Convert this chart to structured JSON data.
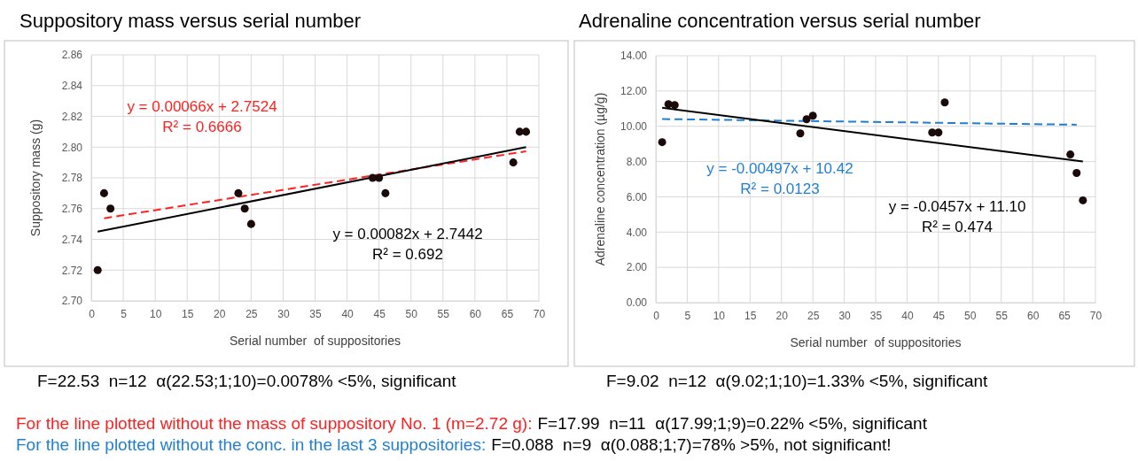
{
  "chart_data": [
    {
      "type": "scatter",
      "title": "Suppository mass versus serial number",
      "xlabel": "Serial number  of suppositories",
      "ylabel": "Suppository mass (g)",
      "xlim": [
        0,
        70
      ],
      "xticks": [
        0,
        5,
        10,
        15,
        20,
        25,
        30,
        35,
        40,
        45,
        50,
        55,
        60,
        65,
        70
      ],
      "ylim": [
        2.7,
        2.86
      ],
      "yticks": [
        {
          "value": 2.7,
          "label": "2.70"
        },
        {
          "value": 2.72,
          "label": "2.72"
        },
        {
          "value": 2.74,
          "label": "2.74"
        },
        {
          "value": 2.76,
          "label": "2.76"
        },
        {
          "value": 2.78,
          "label": "2.78"
        },
        {
          "value": 2.8,
          "label": "2.80"
        },
        {
          "value": 2.82,
          "label": "2.82"
        },
        {
          "value": 2.84,
          "label": "2.84"
        },
        {
          "value": 2.86,
          "label": "2.86"
        }
      ],
      "grid": true,
      "x": [
        1,
        2,
        3,
        23,
        24,
        25,
        44,
        45,
        46,
        66,
        67,
        68
      ],
      "series": [
        {
          "marker": "circle",
          "color": "#1a0a0a",
          "values": [
            2.72,
            2.77,
            2.76,
            2.77,
            2.76,
            2.75,
            2.78,
            2.78,
            2.77,
            2.79,
            2.81,
            2.81
          ]
        },
        {
          "type": "line",
          "color": "#ff2020",
          "line_style": "dashed",
          "x": [
            2,
            68
          ],
          "values": [
            2.7537,
            2.7973
          ]
        },
        {
          "type": "line",
          "color": "#000000",
          "line_style": "solid",
          "x": [
            1,
            68
          ],
          "values": [
            2.745,
            2.8
          ]
        }
      ],
      "annotations": [
        "y = 0.00066x + 2.7524",
        "R² = 0.6666",
        "y = 0.00082x + 2.7442",
        "R² = 0.692",
        "F=22.53  n=12  α(22.53;1;10)=0.0078% <5%, significant",
        "For the line plotted without the mass of suppository No. 1 (m=2.72 g):",
        "F=17.99  n=11  α(17.99;1;9)=0.22% <5%, significant"
      ]
    },
    {
      "type": "scatter",
      "title": "Adrenaline concentration versus serial number",
      "xlabel": "Serial number  of suppositories",
      "ylabel": "Adrenaline concentration (µg/g)",
      "xlim": [
        0,
        70
      ],
      "xticks": [
        0,
        5,
        10,
        15,
        20,
        25,
        30,
        35,
        40,
        45,
        50,
        55,
        60,
        65,
        70
      ],
      "ylim": [
        0,
        14
      ],
      "yticks": [
        {
          "value": 0,
          "label": "0.00"
        },
        {
          "value": 2,
          "label": "2.00"
        },
        {
          "value": 4,
          "label": "4.00"
        },
        {
          "value": 6,
          "label": "6.00"
        },
        {
          "value": 8,
          "label": "8.00"
        },
        {
          "value": 10,
          "label": "10.00"
        },
        {
          "value": 12,
          "label": "12.00"
        },
        {
          "value": 14,
          "label": "14.00"
        }
      ],
      "grid": true,
      "x": [
        1,
        2,
        3,
        23,
        24,
        25,
        44,
        45,
        46,
        66,
        67,
        68
      ],
      "series": [
        {
          "marker": "circle",
          "color": "#1a0a0a",
          "values": [
            9.1,
            11.25,
            11.2,
            9.6,
            10.4,
            10.6,
            9.65,
            9.65,
            11.35,
            8.4,
            7.35,
            5.8
          ]
        },
        {
          "type": "line",
          "color": "#1f7fd6",
          "line_style": "dashed",
          "x": [
            1,
            67
          ],
          "values": [
            10.41,
            10.09
          ]
        },
        {
          "type": "line",
          "color": "#000000",
          "line_style": "solid",
          "x": [
            1,
            68
          ],
          "values": [
            11.05,
            8.0
          ]
        }
      ],
      "annotations": [
        "y = -0.00497x + 10.42",
        "R² = 0.0123",
        "y = -0.0457x + 11.10",
        "R² = 0.474",
        "F=9.02  n=12  α(9.02;1;10)=1.33% <5%, significant",
        "For the line plotted without the conc. in the last 3 suppositories:",
        "F=0.088  n=9  α(0.088;1;7)=78% >5%, not significant!"
      ]
    }
  ]
}
